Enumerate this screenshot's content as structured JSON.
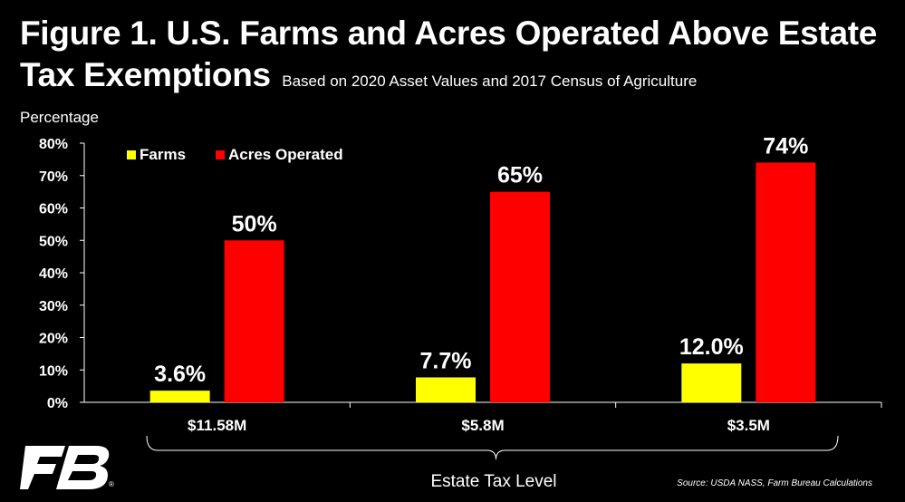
{
  "title": {
    "line1": "Figure 1. U.S. Farms and Acres Operated Above Estate",
    "line2": "Tax Exemptions",
    "subtitle": "Based on 2020 Asset Values and 2017 Census of Agriculture"
  },
  "source": "Source: USDA NASS, Farm Bureau Calculations",
  "logo": {
    "registered": "®"
  },
  "colors": {
    "farms": "#ffff00",
    "acres": "#ff0000",
    "background": "#000000",
    "text": "#ffffff"
  },
  "chart_data": {
    "type": "bar",
    "title": "Figure 1. U.S. Farms and Acres Operated Above Estate Tax Exemptions",
    "subtitle": "Based on 2020 Asset Values and 2017 Census of Agriculture",
    "ylabel": "Percentage",
    "xlabel": "Estate Tax Level",
    "categories": [
      "$11.58M",
      "$5.8M",
      "$3.5M"
    ],
    "series": [
      {
        "name": "Farms",
        "values": [
          3.6,
          7.7,
          12.0
        ],
        "labels": [
          "3.6%",
          "7.7%",
          "12.0%"
        ]
      },
      {
        "name": "Acres Operated",
        "values": [
          50,
          65,
          74
        ],
        "labels": [
          "50%",
          "65%",
          "74%"
        ]
      }
    ],
    "ylim": [
      0,
      80
    ],
    "yticks": [
      "0%",
      "10%",
      "20%",
      "30%",
      "40%",
      "50%",
      "60%",
      "70%",
      "80%"
    ],
    "grid": false,
    "legend": "top-left"
  }
}
